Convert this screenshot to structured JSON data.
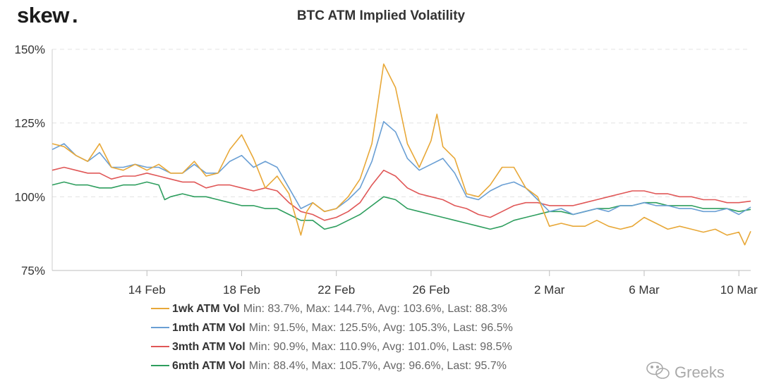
{
  "brand": {
    "name": "skew",
    "dot": ".",
    "dot_color": "#f2a900"
  },
  "watermark": {
    "text": "Greeks",
    "icon": "wechat-icon"
  },
  "chart_data": {
    "type": "line",
    "title": "BTC ATM Implied Volatility",
    "xlabel": "",
    "ylabel": "",
    "x_range": [
      "2020-02-10",
      "2020-03-10"
    ],
    "x_ticks": [
      {
        "date": "2020-02-14",
        "label": "14 Feb"
      },
      {
        "date": "2020-02-18",
        "label": "18 Feb"
      },
      {
        "date": "2020-02-22",
        "label": "22 Feb"
      },
      {
        "date": "2020-02-26",
        "label": "26 Feb"
      },
      {
        "date": "2020-03-02",
        "label": "2 Mar"
      },
      {
        "date": "2020-03-06",
        "label": "6 Mar"
      },
      {
        "date": "2020-03-10",
        "label": "10 Mar"
      }
    ],
    "y_ticks": [
      {
        "value": 75,
        "label": "75%"
      },
      {
        "value": 100,
        "label": "100%"
      },
      {
        "value": 125,
        "label": "125%"
      },
      {
        "value": 150,
        "label": "150%"
      }
    ],
    "ylim": [
      75,
      150
    ],
    "grid": "horizontal dashed",
    "legend_position": "bottom",
    "series": [
      {
        "name": "1wk ATM Vol",
        "stats": "Min: 83.7%, Max: 144.7%, Avg: 103.6%, Last: 88.3%",
        "color": "#e8a838",
        "points": [
          [
            "2020-02-10 00:00",
            118
          ],
          [
            "2020-02-10 12:00",
            117
          ],
          [
            "2020-02-11 00:00",
            114
          ],
          [
            "2020-02-11 12:00",
            112
          ],
          [
            "2020-02-12 00:00",
            118
          ],
          [
            "2020-02-12 12:00",
            110
          ],
          [
            "2020-02-13 00:00",
            109
          ],
          [
            "2020-02-13 12:00",
            111
          ],
          [
            "2020-02-14 00:00",
            109
          ],
          [
            "2020-02-14 12:00",
            111
          ],
          [
            "2020-02-15 00:00",
            108
          ],
          [
            "2020-02-15 12:00",
            108
          ],
          [
            "2020-02-16 00:00",
            112
          ],
          [
            "2020-02-16 12:00",
            107
          ],
          [
            "2020-02-17 00:00",
            108
          ],
          [
            "2020-02-17 12:00",
            116
          ],
          [
            "2020-02-18 00:00",
            121
          ],
          [
            "2020-02-18 12:00",
            113
          ],
          [
            "2020-02-19 00:00",
            103
          ],
          [
            "2020-02-19 12:00",
            107
          ],
          [
            "2020-02-20 00:00",
            101
          ],
          [
            "2020-02-20 06:00",
            94
          ],
          [
            "2020-02-20 12:00",
            87
          ],
          [
            "2020-02-20 18:00",
            95
          ],
          [
            "2020-02-21 00:00",
            98
          ],
          [
            "2020-02-21 12:00",
            95
          ],
          [
            "2020-02-22 00:00",
            96
          ],
          [
            "2020-02-22 12:00",
            100
          ],
          [
            "2020-02-23 00:00",
            106
          ],
          [
            "2020-02-23 12:00",
            118
          ],
          [
            "2020-02-24 00:00",
            145
          ],
          [
            "2020-02-24 12:00",
            137
          ],
          [
            "2020-02-25 00:00",
            118
          ],
          [
            "2020-02-25 12:00",
            110
          ],
          [
            "2020-02-26 00:00",
            119
          ],
          [
            "2020-02-26 06:00",
            128
          ],
          [
            "2020-02-26 12:00",
            117
          ],
          [
            "2020-02-27 00:00",
            113
          ],
          [
            "2020-02-27 12:00",
            101
          ],
          [
            "2020-02-28 00:00",
            100
          ],
          [
            "2020-02-28 12:00",
            104
          ],
          [
            "2020-02-29 00:00",
            110
          ],
          [
            "2020-02-29 12:00",
            110
          ],
          [
            "2020-03-01 00:00",
            103
          ],
          [
            "2020-03-01 12:00",
            100
          ],
          [
            "2020-03-02 00:00",
            90
          ],
          [
            "2020-03-02 12:00",
            91
          ],
          [
            "2020-03-03 00:00",
            90
          ],
          [
            "2020-03-03 12:00",
            90
          ],
          [
            "2020-03-04 00:00",
            92
          ],
          [
            "2020-03-04 12:00",
            90
          ],
          [
            "2020-03-05 00:00",
            89
          ],
          [
            "2020-03-05 12:00",
            90
          ],
          [
            "2020-03-06 00:00",
            93
          ],
          [
            "2020-03-06 12:00",
            91
          ],
          [
            "2020-03-07 00:00",
            89
          ],
          [
            "2020-03-07 12:00",
            90
          ],
          [
            "2020-03-08 00:00",
            89
          ],
          [
            "2020-03-08 12:00",
            88
          ],
          [
            "2020-03-09 00:00",
            89
          ],
          [
            "2020-03-09 12:00",
            87
          ],
          [
            "2020-03-10 00:00",
            88
          ],
          [
            "2020-03-10 06:00",
            83.7
          ],
          [
            "2020-03-10 12:00",
            88.3
          ]
        ]
      },
      {
        "name": "1mth ATM Vol",
        "stats": "Min: 91.5%, Max: 125.5%, Avg: 105.3%, Last: 96.5%",
        "color": "#6a9fd4",
        "points": [
          [
            "2020-02-10 00:00",
            116
          ],
          [
            "2020-02-10 12:00",
            118
          ],
          [
            "2020-02-11 00:00",
            114
          ],
          [
            "2020-02-11 12:00",
            112
          ],
          [
            "2020-02-12 00:00",
            115
          ],
          [
            "2020-02-12 12:00",
            110
          ],
          [
            "2020-02-13 00:00",
            110
          ],
          [
            "2020-02-13 12:00",
            111
          ],
          [
            "2020-02-14 00:00",
            110
          ],
          [
            "2020-02-14 12:00",
            110
          ],
          [
            "2020-02-15 00:00",
            108
          ],
          [
            "2020-02-15 12:00",
            108
          ],
          [
            "2020-02-16 00:00",
            111
          ],
          [
            "2020-02-16 12:00",
            108
          ],
          [
            "2020-02-17 00:00",
            108
          ],
          [
            "2020-02-17 12:00",
            112
          ],
          [
            "2020-02-18 00:00",
            114
          ],
          [
            "2020-02-18 12:00",
            110
          ],
          [
            "2020-02-19 00:00",
            112
          ],
          [
            "2020-02-19 12:00",
            110
          ],
          [
            "2020-02-20 00:00",
            103
          ],
          [
            "2020-02-20 12:00",
            96
          ],
          [
            "2020-02-21 00:00",
            98
          ],
          [
            "2020-02-21 12:00",
            95
          ],
          [
            "2020-02-22 00:00",
            96
          ],
          [
            "2020-02-22 12:00",
            99
          ],
          [
            "2020-02-23 00:00",
            103
          ],
          [
            "2020-02-23 12:00",
            112
          ],
          [
            "2020-02-24 00:00",
            125.5
          ],
          [
            "2020-02-24 12:00",
            122
          ],
          [
            "2020-02-25 00:00",
            113
          ],
          [
            "2020-02-25 12:00",
            109
          ],
          [
            "2020-02-26 00:00",
            111
          ],
          [
            "2020-02-26 12:00",
            113
          ],
          [
            "2020-02-27 00:00",
            108
          ],
          [
            "2020-02-27 12:00",
            100
          ],
          [
            "2020-02-28 00:00",
            99
          ],
          [
            "2020-02-28 12:00",
            102
          ],
          [
            "2020-02-29 00:00",
            104
          ],
          [
            "2020-02-29 12:00",
            105
          ],
          [
            "2020-03-01 00:00",
            103
          ],
          [
            "2020-03-01 12:00",
            99
          ],
          [
            "2020-03-02 00:00",
            95
          ],
          [
            "2020-03-02 12:00",
            96
          ],
          [
            "2020-03-03 00:00",
            94
          ],
          [
            "2020-03-03 12:00",
            95
          ],
          [
            "2020-03-04 00:00",
            96
          ],
          [
            "2020-03-04 12:00",
            95
          ],
          [
            "2020-03-05 00:00",
            97
          ],
          [
            "2020-03-05 12:00",
            97
          ],
          [
            "2020-03-06 00:00",
            98
          ],
          [
            "2020-03-06 12:00",
            97
          ],
          [
            "2020-03-07 00:00",
            97
          ],
          [
            "2020-03-07 12:00",
            96
          ],
          [
            "2020-03-08 00:00",
            96
          ],
          [
            "2020-03-08 12:00",
            95
          ],
          [
            "2020-03-09 00:00",
            95
          ],
          [
            "2020-03-09 12:00",
            96
          ],
          [
            "2020-03-10 00:00",
            94
          ],
          [
            "2020-03-10 12:00",
            96.5
          ]
        ]
      },
      {
        "name": "3mth ATM Vol",
        "stats": "Min: 90.9%, Max: 110.9%, Avg: 101.0%, Last: 98.5%",
        "color": "#e05757",
        "points": [
          [
            "2020-02-10 00:00",
            109
          ],
          [
            "2020-02-10 12:00",
            110
          ],
          [
            "2020-02-11 00:00",
            109
          ],
          [
            "2020-02-11 12:00",
            108
          ],
          [
            "2020-02-12 00:00",
            108
          ],
          [
            "2020-02-12 12:00",
            106
          ],
          [
            "2020-02-13 00:00",
            107
          ],
          [
            "2020-02-13 12:00",
            107
          ],
          [
            "2020-02-14 00:00",
            108
          ],
          [
            "2020-02-14 12:00",
            107
          ],
          [
            "2020-02-15 00:00",
            106
          ],
          [
            "2020-02-15 12:00",
            105
          ],
          [
            "2020-02-16 00:00",
            105
          ],
          [
            "2020-02-16 12:00",
            103
          ],
          [
            "2020-02-17 00:00",
            104
          ],
          [
            "2020-02-17 12:00",
            104
          ],
          [
            "2020-02-18 00:00",
            103
          ],
          [
            "2020-02-18 12:00",
            102
          ],
          [
            "2020-02-19 00:00",
            103
          ],
          [
            "2020-02-19 12:00",
            102
          ],
          [
            "2020-02-20 00:00",
            98
          ],
          [
            "2020-02-20 12:00",
            95
          ],
          [
            "2020-02-21 00:00",
            94
          ],
          [
            "2020-02-21 12:00",
            92
          ],
          [
            "2020-02-22 00:00",
            93
          ],
          [
            "2020-02-22 12:00",
            95
          ],
          [
            "2020-02-23 00:00",
            98
          ],
          [
            "2020-02-23 12:00",
            104
          ],
          [
            "2020-02-24 00:00",
            109
          ],
          [
            "2020-02-24 12:00",
            107
          ],
          [
            "2020-02-25 00:00",
            103
          ],
          [
            "2020-02-25 12:00",
            101
          ],
          [
            "2020-02-26 00:00",
            100
          ],
          [
            "2020-02-26 12:00",
            99
          ],
          [
            "2020-02-27 00:00",
            97
          ],
          [
            "2020-02-27 12:00",
            96
          ],
          [
            "2020-02-28 00:00",
            94
          ],
          [
            "2020-02-28 12:00",
            93
          ],
          [
            "2020-02-29 00:00",
            95
          ],
          [
            "2020-02-29 12:00",
            97
          ],
          [
            "2020-03-01 00:00",
            98
          ],
          [
            "2020-03-01 12:00",
            98
          ],
          [
            "2020-03-02 00:00",
            97
          ],
          [
            "2020-03-02 12:00",
            97
          ],
          [
            "2020-03-03 00:00",
            97
          ],
          [
            "2020-03-03 12:00",
            98
          ],
          [
            "2020-03-04 00:00",
            99
          ],
          [
            "2020-03-04 12:00",
            100
          ],
          [
            "2020-03-05 00:00",
            101
          ],
          [
            "2020-03-05 12:00",
            102
          ],
          [
            "2020-03-06 00:00",
            102
          ],
          [
            "2020-03-06 12:00",
            101
          ],
          [
            "2020-03-07 00:00",
            101
          ],
          [
            "2020-03-07 12:00",
            100
          ],
          [
            "2020-03-08 00:00",
            100
          ],
          [
            "2020-03-08 12:00",
            99
          ],
          [
            "2020-03-09 00:00",
            99
          ],
          [
            "2020-03-09 12:00",
            98
          ],
          [
            "2020-03-10 00:00",
            98
          ],
          [
            "2020-03-10 12:00",
            98.5
          ]
        ]
      },
      {
        "name": "6mth ATM Vol",
        "stats": "Min: 88.4%, Max: 105.7%, Avg: 96.6%, Last: 95.7%",
        "color": "#2e9e5e",
        "points": [
          [
            "2020-02-10 00:00",
            104
          ],
          [
            "2020-02-10 12:00",
            105
          ],
          [
            "2020-02-11 00:00",
            104
          ],
          [
            "2020-02-11 12:00",
            104
          ],
          [
            "2020-02-12 00:00",
            103
          ],
          [
            "2020-02-12 12:00",
            103
          ],
          [
            "2020-02-13 00:00",
            104
          ],
          [
            "2020-02-13 12:00",
            104
          ],
          [
            "2020-02-14 00:00",
            105
          ],
          [
            "2020-02-14 12:00",
            104
          ],
          [
            "2020-02-14 18:00",
            99
          ],
          [
            "2020-02-15 00:00",
            100
          ],
          [
            "2020-02-15 12:00",
            101
          ],
          [
            "2020-02-16 00:00",
            100
          ],
          [
            "2020-02-16 12:00",
            100
          ],
          [
            "2020-02-17 00:00",
            99
          ],
          [
            "2020-02-17 12:00",
            98
          ],
          [
            "2020-02-18 00:00",
            97
          ],
          [
            "2020-02-18 12:00",
            97
          ],
          [
            "2020-02-19 00:00",
            96
          ],
          [
            "2020-02-19 12:00",
            96
          ],
          [
            "2020-02-20 00:00",
            94
          ],
          [
            "2020-02-20 12:00",
            92
          ],
          [
            "2020-02-21 00:00",
            92
          ],
          [
            "2020-02-21 12:00",
            89
          ],
          [
            "2020-02-22 00:00",
            90
          ],
          [
            "2020-02-22 12:00",
            92
          ],
          [
            "2020-02-23 00:00",
            94
          ],
          [
            "2020-02-23 12:00",
            97
          ],
          [
            "2020-02-24 00:00",
            100
          ],
          [
            "2020-02-24 12:00",
            99
          ],
          [
            "2020-02-25 00:00",
            96
          ],
          [
            "2020-02-25 12:00",
            95
          ],
          [
            "2020-02-26 00:00",
            94
          ],
          [
            "2020-02-26 12:00",
            93
          ],
          [
            "2020-02-27 00:00",
            92
          ],
          [
            "2020-02-27 12:00",
            91
          ],
          [
            "2020-02-28 00:00",
            90
          ],
          [
            "2020-02-28 12:00",
            89
          ],
          [
            "2020-02-29 00:00",
            90
          ],
          [
            "2020-02-29 12:00",
            92
          ],
          [
            "2020-03-01 00:00",
            93
          ],
          [
            "2020-03-01 12:00",
            94
          ],
          [
            "2020-03-02 00:00",
            95
          ],
          [
            "2020-03-02 12:00",
            95
          ],
          [
            "2020-03-03 00:00",
            94
          ],
          [
            "2020-03-03 12:00",
            95
          ],
          [
            "2020-03-04 00:00",
            96
          ],
          [
            "2020-03-04 12:00",
            96
          ],
          [
            "2020-03-05 00:00",
            97
          ],
          [
            "2020-03-05 12:00",
            97
          ],
          [
            "2020-03-06 00:00",
            98
          ],
          [
            "2020-03-06 12:00",
            98
          ],
          [
            "2020-03-07 00:00",
            97
          ],
          [
            "2020-03-07 12:00",
            97
          ],
          [
            "2020-03-08 00:00",
            97
          ],
          [
            "2020-03-08 12:00",
            96
          ],
          [
            "2020-03-09 00:00",
            96
          ],
          [
            "2020-03-09 12:00",
            96
          ],
          [
            "2020-03-10 00:00",
            95
          ],
          [
            "2020-03-10 12:00",
            95.7
          ]
        ]
      }
    ]
  }
}
